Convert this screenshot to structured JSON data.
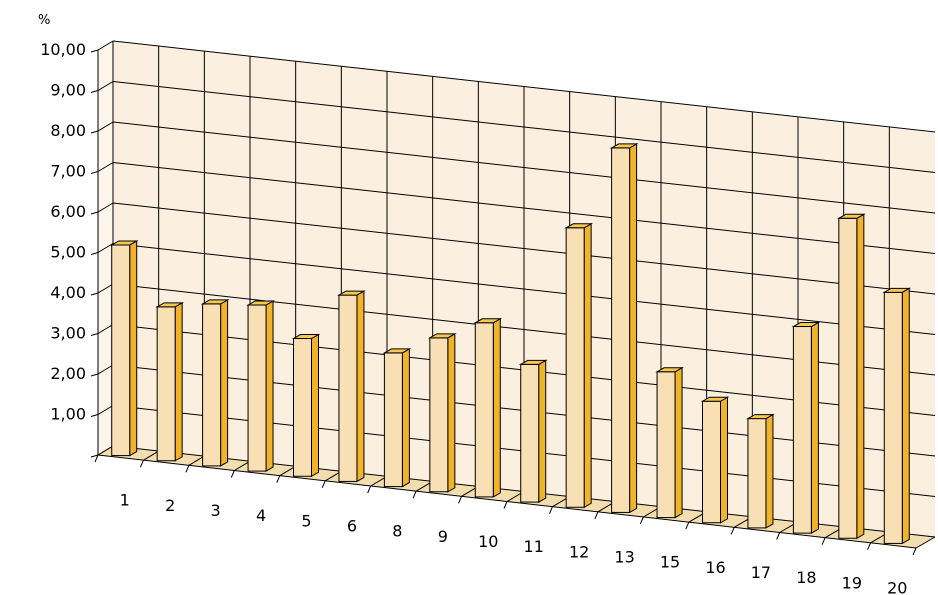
{
  "chart_data": {
    "type": "bar",
    "unit_label": "%",
    "categories": [
      "1",
      "2",
      "3",
      "4",
      "5",
      "6",
      "8",
      "9",
      "10",
      "11",
      "12",
      "13",
      "15",
      "16",
      "17",
      "18",
      "19",
      "20"
    ],
    "values": [
      5.2,
      3.8,
      4.0,
      4.1,
      3.4,
      4.6,
      3.3,
      3.8,
      4.3,
      3.4,
      6.9,
      9.0,
      3.6,
      3.0,
      2.7,
      5.1,
      7.9,
      6.2
    ],
    "y_ticks": [
      "1,00",
      "2,00",
      "3,00",
      "4,00",
      "5,00",
      "6,00",
      "7,00",
      "8,00",
      "9,00",
      "10,00"
    ],
    "ylim": [
      0,
      10
    ],
    "grid": true,
    "colors": {
      "wall": "#fbefe0",
      "floor": "#f3deb0",
      "bar_front": "#f9dfb4",
      "bar_side": "#f0b32a",
      "bar_top": "#f7c74e",
      "edge": "#000000"
    }
  }
}
